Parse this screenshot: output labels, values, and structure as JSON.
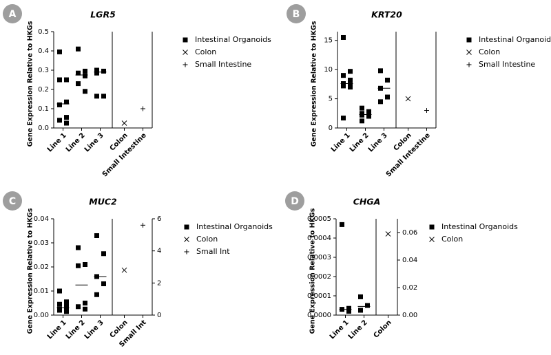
{
  "chart_data": [
    {
      "type": "dot",
      "letter": "A",
      "title": "LGR5",
      "ylabel": "Gene Expression Relative to HKGs",
      "categories": [
        "Line 1",
        "Line 2",
        "Line 3",
        "Colon",
        "Small Intestine"
      ],
      "ylim": [
        0,
        0.5
      ],
      "yticks": [
        {
          "value": 0,
          "label": "0.0"
        },
        0.1,
        0.2,
        0.3,
        0.4,
        0.5
      ],
      "series": [
        {
          "name": "Intestinal Organoids",
          "marker": "square",
          "color": "#000000",
          "values": [
            [
              0.395,
              0.25,
              0.25,
              0.135,
              0.12,
              0.055,
              0.04,
              0.025
            ],
            [
              0.41,
              0.295,
              0.285,
              0.27,
              0.23,
              0.19
            ],
            [
              0.3,
              0.295,
              0.285,
              0.165,
              0.165
            ],
            null,
            null
          ],
          "medians": [
            0.125,
            0.275,
            0.29,
            null,
            null
          ]
        },
        {
          "name": "Colon",
          "marker": "x",
          "color": "#000000",
          "values": [
            null,
            null,
            null,
            [
              0.025
            ],
            null
          ]
        },
        {
          "name": "Small Intestine",
          "marker": "plus",
          "color": "#000000",
          "values": [
            null,
            null,
            null,
            null,
            [
              0.1
            ]
          ]
        }
      ]
    },
    {
      "type": "dot",
      "letter": "B",
      "title": "KRT20",
      "ylabel": "Gene Expression Relative to HKGs",
      "categories": [
        "Line 1",
        "Line 2",
        "Line 3",
        "Colon",
        "Small Intestine"
      ],
      "ylim": [
        0,
        16.5
      ],
      "yticks": [
        0,
        5,
        10,
        15
      ],
      "series": [
        {
          "name": "Intestinal Organoids",
          "marker": "square",
          "color": "#000000",
          "values": [
            [
              15.5,
              9.7,
              9.0,
              8.2,
              7.6,
              7.4,
              7.2,
              7.0,
              1.7
            ],
            [
              3.4,
              2.8,
              2.5,
              2.3,
              2.2,
              2.0,
              1.2
            ],
            [
              9.8,
              8.2,
              6.8,
              5.3,
              4.5
            ],
            null,
            null
          ],
          "medians": [
            7.6,
            2.3,
            6.8,
            null,
            null
          ]
        },
        {
          "name": "Colon",
          "marker": "x",
          "color": "#000000",
          "values": [
            null,
            null,
            null,
            [
              5.0
            ],
            null
          ]
        },
        {
          "name": "Small Intestine",
          "marker": "plus",
          "color": "#000000",
          "values": [
            null,
            null,
            null,
            null,
            [
              3.0
            ]
          ]
        }
      ]
    },
    {
      "type": "dot",
      "letter": "C",
      "title": "MUC2",
      "ylabel": "Gene Expression Relative to HKGs",
      "categories": [
        "Line 1",
        "Line 2",
        "Line 3",
        "Colon",
        "Small Int"
      ],
      "ylim": [
        0,
        0.04
      ],
      "yticks": [
        {
          "value": 0,
          "label": "0.00"
        },
        0.01,
        0.02,
        0.03,
        0.04
      ],
      "y2lim": [
        0,
        6
      ],
      "y2ticks": [
        0,
        2,
        4,
        6
      ],
      "series": [
        {
          "name": "Intestinal Organoids",
          "marker": "square",
          "color": "#000000",
          "values": [
            [
              0.01,
              0.0055,
              0.0045,
              0.004,
              0.0025,
              0.002,
              0.002,
              0.0015
            ],
            [
              0.028,
              0.021,
              0.0205,
              0.005,
              0.0035,
              0.0025
            ],
            [
              0.033,
              0.0255,
              0.016,
              0.013,
              0.0085
            ],
            null,
            null
          ],
          "medians": [
            0.003,
            0.0125,
            0.016,
            null,
            null
          ]
        },
        {
          "name": "Colon",
          "marker": "x",
          "color": "#000000",
          "axis": "y2",
          "values": [
            null,
            null,
            null,
            [
              2.8
            ],
            null
          ]
        },
        {
          "name": "Small Int",
          "marker": "plus",
          "color": "#000000",
          "axis": "y2",
          "values": [
            null,
            null,
            null,
            null,
            [
              5.6
            ]
          ]
        }
      ]
    },
    {
      "type": "dot",
      "letter": "D",
      "title": "CHGA",
      "ylabel": "Gene Expression Relative to HKGs",
      "categories": [
        "Line 1",
        "Line 2",
        "Colon"
      ],
      "ylim": [
        0,
        0.0005
      ],
      "yticks": [
        {
          "value": 0,
          "label": "0.0000"
        },
        {
          "value": 0.0001,
          "label": "0.0001"
        },
        {
          "value": 0.0002,
          "label": "0.0002"
        },
        {
          "value": 0.0003,
          "label": "0.0003"
        },
        {
          "value": 0.0004,
          "label": "0.0004"
        },
        {
          "value": 0.0005,
          "label": "0.0005"
        }
      ],
      "y2lim": [
        0,
        0.07
      ],
      "y2ticks": [
        {
          "value": 0,
          "label": "0.00"
        },
        0.02,
        0.04,
        0.06
      ],
      "series": [
        {
          "name": "Intestinal Organoids",
          "marker": "square",
          "color": "#000000",
          "values": [
            [
              0.00047,
              3.5e-05,
              3e-05,
              2e-05
            ],
            [
              9.5e-05,
              5e-05,
              2.5e-05
            ],
            null
          ],
          "medians": [
            3e-05,
            4.5e-05,
            null
          ]
        },
        {
          "name": "Colon",
          "marker": "x",
          "color": "#000000",
          "axis": "y2",
          "values": [
            null,
            null,
            [
              0.059
            ]
          ]
        }
      ]
    }
  ]
}
